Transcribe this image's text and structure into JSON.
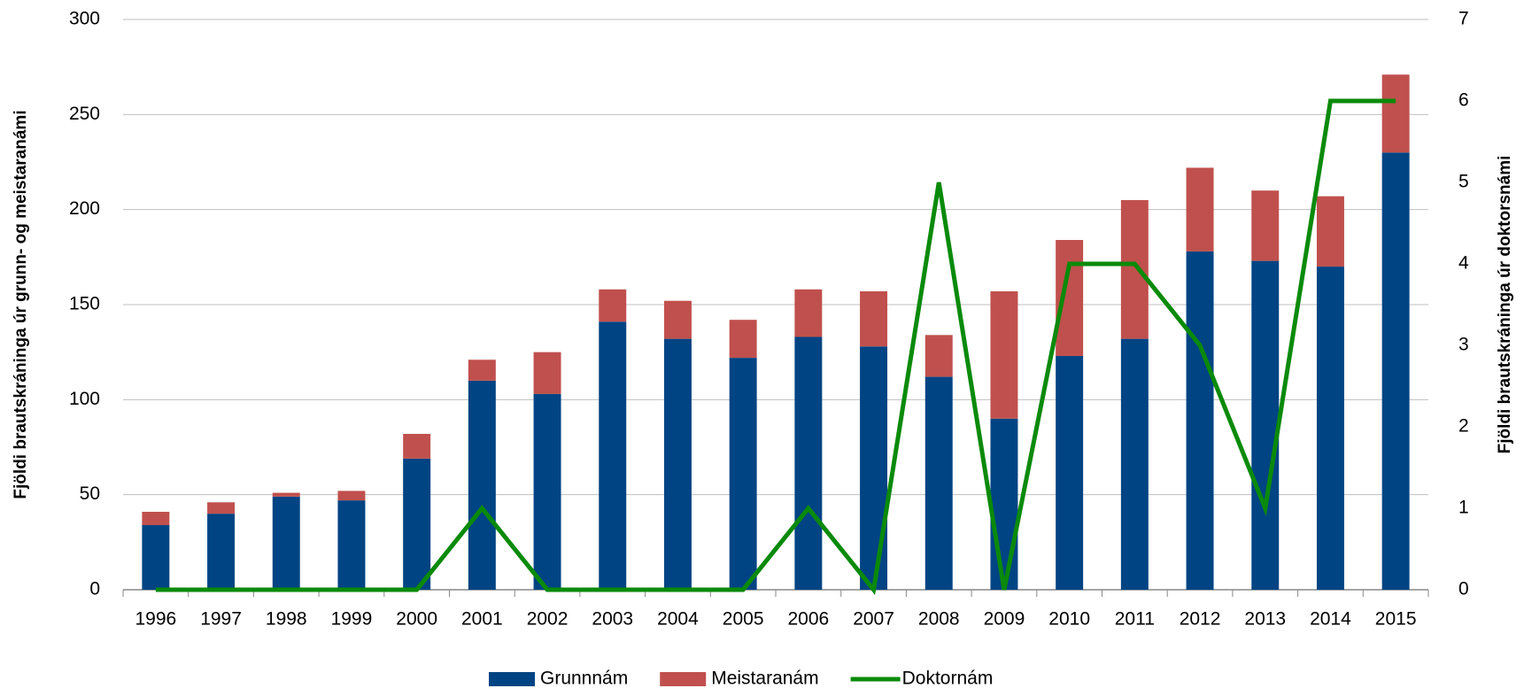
{
  "chart_data": {
    "type": "bar-line",
    "ylabel": "Fjöldi brautskráninga úr grunn- og meistaranámi",
    "y2label": "Fjöldi brautskráninga úr doktorsnámi",
    "categories": [
      "1996",
      "1997",
      "1998",
      "1999",
      "2000",
      "2001",
      "2002",
      "2003",
      "2004",
      "2005",
      "2006",
      "2007",
      "2008",
      "2009",
      "2010",
      "2011",
      "2012",
      "2013",
      "2014",
      "2015"
    ],
    "series": [
      {
        "name": "Grunnnám",
        "color": "#004483",
        "type": "bar",
        "values": [
          34,
          40,
          49,
          47,
          69,
          110,
          103,
          141,
          132,
          122,
          133,
          128,
          112,
          90,
          123,
          132,
          178,
          173,
          170,
          230
        ]
      },
      {
        "name": "Meistaranám",
        "color": "#c0504d",
        "type": "bar",
        "values": [
          7,
          6,
          2,
          5,
          13,
          11,
          22,
          17,
          20,
          20,
          25,
          29,
          22,
          67,
          61,
          73,
          44,
          37,
          37,
          41
        ]
      },
      {
        "name": "Doktornám",
        "color": "#0a8a0a",
        "type": "line",
        "axis": "y2",
        "values": [
          0,
          0,
          0,
          0,
          0,
          1,
          0,
          0,
          0,
          0,
          1,
          0,
          5,
          0,
          4,
          4,
          3,
          1,
          6,
          6
        ]
      }
    ],
    "ylim": [
      0,
      300
    ],
    "yticks": [
      0,
      50,
      100,
      150,
      200,
      250,
      300
    ],
    "y2lim": [
      0,
      7
    ],
    "y2ticks": [
      0,
      1,
      2,
      3,
      4,
      5,
      6,
      7
    ],
    "grid": true,
    "legend": "bottom"
  }
}
